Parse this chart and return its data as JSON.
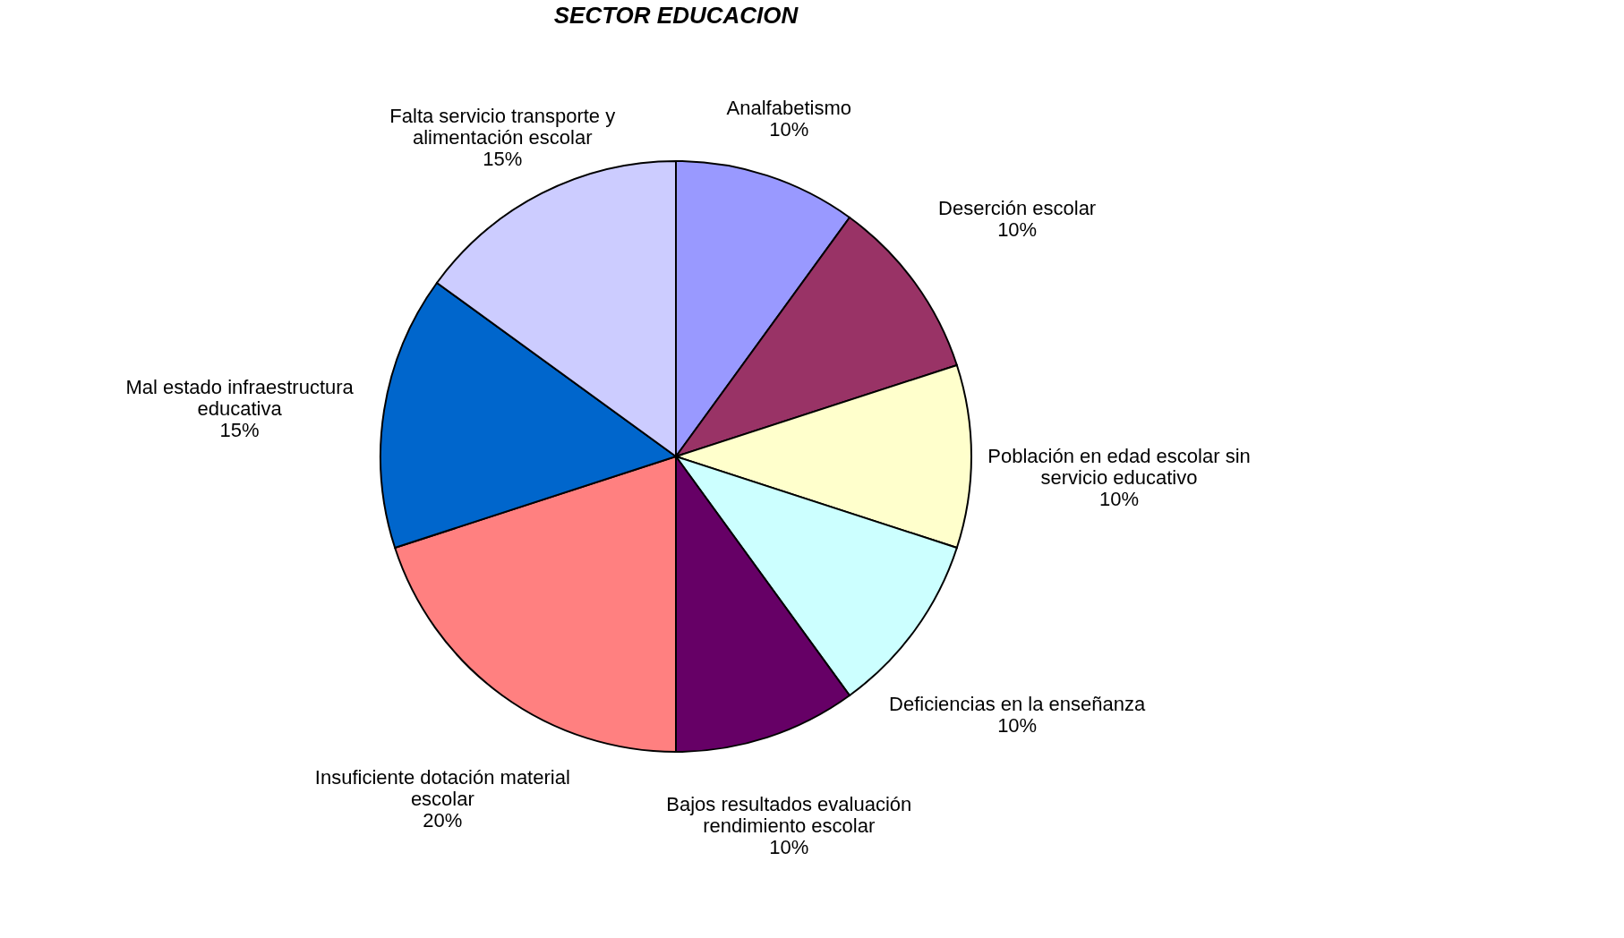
{
  "chart_data": {
    "type": "pie",
    "title": "SECTOR EDUCACION",
    "categories": [
      "Analfabetismo",
      "Deserción escolar",
      "Población en edad escolar sin servicio educativo",
      "Deficiencias en la enseñanza",
      "Bajos resultados evaluación rendimiento escolar",
      "Insuficiente dotación material escolar",
      "Mal estado infraestructura educativa",
      "Falta servicio transporte y alimentación escolar"
    ],
    "values": [
      10,
      10,
      10,
      10,
      10,
      20,
      15,
      15
    ],
    "value_labels": [
      "10%",
      "10%",
      "10%",
      "10%",
      "10%",
      "20%",
      "15%",
      "15%"
    ],
    "colors": [
      "#9999ff",
      "#993366",
      "#ffffcc",
      "#ccffff",
      "#660066",
      "#ff8080",
      "#0066cc",
      "#ccccff"
    ],
    "legend": false
  }
}
